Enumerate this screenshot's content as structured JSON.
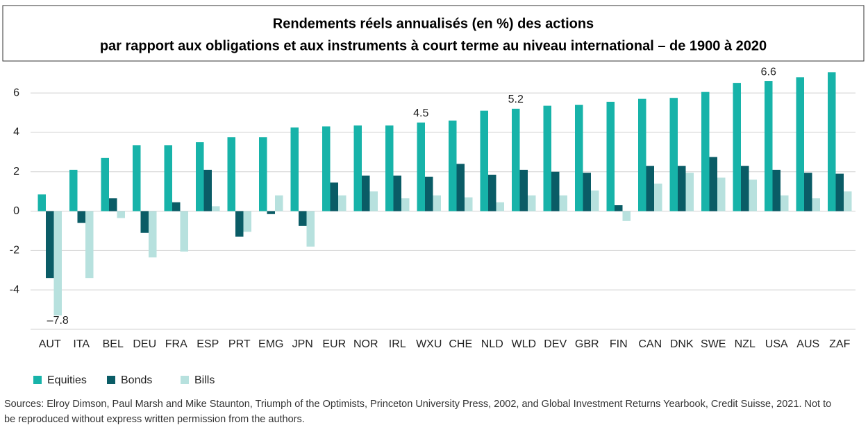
{
  "chart_data": {
    "type": "bar",
    "title": [
      "Rendements réels annualisés (en %) des actions",
      "par rapport aux obligations et aux instruments à court terme au niveau international – de 1900 à 2020"
    ],
    "categories": [
      "AUT",
      "ITA",
      "BEL",
      "DEU",
      "FRA",
      "ESP",
      "PRT",
      "EMG",
      "JPN",
      "EUR",
      "NOR",
      "IRL",
      "WXU",
      "CHE",
      "NLD",
      "WLD",
      "DEV",
      "GBR",
      "FIN",
      "CAN",
      "DNK",
      "SWE",
      "NZL",
      "USA",
      "AUS",
      "ZAF"
    ],
    "series": [
      {
        "name": "Equities",
        "color": "#17b3a9",
        "values": [
          0.85,
          2.1,
          2.7,
          3.35,
          3.35,
          3.5,
          3.75,
          3.75,
          4.25,
          4.3,
          4.35,
          4.35,
          4.5,
          4.6,
          5.1,
          5.2,
          5.35,
          5.4,
          5.55,
          5.7,
          5.75,
          6.05,
          6.5,
          6.6,
          6.8,
          7.05
        ],
        "value_labels": [
          null,
          null,
          null,
          null,
          null,
          null,
          null,
          null,
          null,
          null,
          null,
          null,
          "4.5",
          null,
          null,
          "5.2",
          null,
          null,
          null,
          null,
          null,
          null,
          null,
          "6.6",
          null,
          null
        ]
      },
      {
        "name": "Bonds",
        "color": "#0a5c66",
        "values": [
          -3.4,
          -0.6,
          0.65,
          -1.1,
          0.45,
          2.1,
          -1.3,
          -0.15,
          -0.75,
          1.45,
          1.8,
          1.8,
          1.75,
          2.4,
          1.85,
          2.1,
          2.0,
          1.95,
          0.3,
          2.3,
          2.3,
          2.75,
          2.3,
          2.1,
          1.95,
          1.9
        ]
      },
      {
        "name": "Bills",
        "color": "#b7e1de",
        "values": [
          -7.8,
          -3.4,
          -0.35,
          -2.35,
          -2.05,
          0.25,
          -1.05,
          0.8,
          -1.8,
          0.8,
          1.0,
          0.65,
          0.8,
          0.7,
          0.45,
          0.8,
          0.8,
          1.05,
          -0.5,
          1.4,
          1.95,
          1.7,
          1.6,
          0.8,
          0.65,
          1.0
        ],
        "value_labels": [
          "–7.8",
          null,
          null,
          null,
          null,
          null,
          null,
          null,
          null,
          null,
          null,
          null,
          null,
          null,
          null,
          null,
          null,
          null,
          null,
          null,
          null,
          null,
          null,
          null,
          null,
          null
        ]
      }
    ],
    "ylim": [
      -6,
      7.2
    ],
    "yticks": [
      -4,
      -2,
      0,
      2,
      4,
      6
    ],
    "grid": true,
    "legend": "bottom-left",
    "source": "Sources: Elroy Dimson, Paul Marsh and Mike Staunton, Triumph of the Optimists, Princeton University Press, 2002, and Global Investment Returns Yearbook, Credit Suisse, 2021. Not to be reproduced without express written permission from the authors."
  }
}
